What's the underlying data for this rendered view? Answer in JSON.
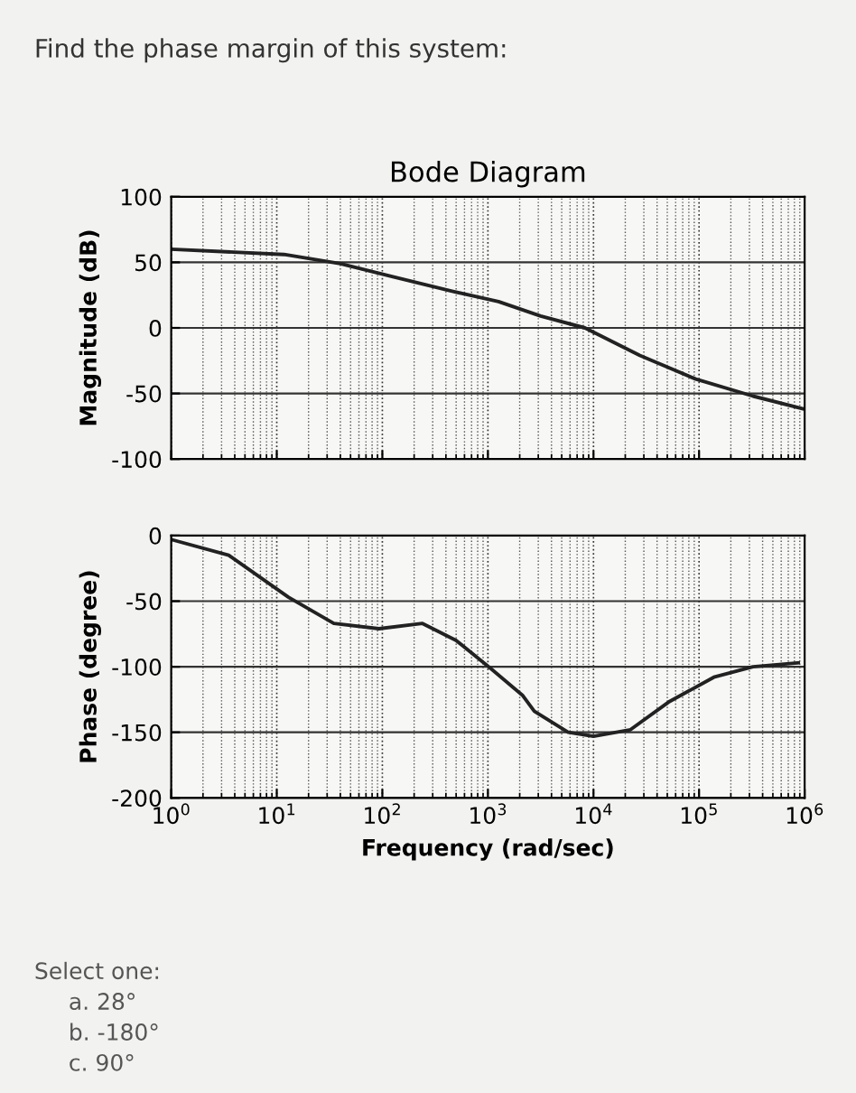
{
  "chart_data": [
    {
      "type": "line",
      "title": "Bode Diagram",
      "ylabel": "Magnitude (dB)",
      "annotations": [
        "Find the phase margin of this system:"
      ],
      "series": [
        {
          "color": "#222222",
          "x": [
            1,
            11.7,
            40,
            126,
            457,
            1260,
            3160,
            8300,
            27500,
            93000,
            324000,
            1000000
          ],
          "values": [
            60,
            56,
            49,
            39,
            28,
            20,
            9,
            0,
            -21,
            -39,
            -52,
            -62
          ]
        }
      ],
      "log": "x",
      "xlim": [
        1,
        1000000
      ],
      "xticks": [
        {
          "value": 1,
          "label": null
        },
        {
          "value": 10,
          "label": null
        },
        {
          "value": 100,
          "label": null
        },
        {
          "value": 1000,
          "label": null
        },
        {
          "value": 10000,
          "label": null
        },
        {
          "value": 100000,
          "label": null
        },
        {
          "value": 1000000,
          "label": null
        }
      ],
      "ylim": [
        -100,
        100
      ],
      "yticks": [
        {
          "value": -100,
          "label": "-100"
        },
        {
          "value": -50,
          "label": "-50"
        },
        0,
        50,
        100
      ],
      "grid": true,
      "tick_labels": "y",
      "line_style": "solid"
    },
    {
      "type": "line",
      "xlabel": "Frequency (rad/sec)",
      "ylabel": "Phase (degree)",
      "annotations": [
        "Select one:",
        "a. 28°",
        "b. -180°",
        "c. 90°"
      ],
      "series": [
        {
          "color": "#222222",
          "x": [
            1,
            3.5,
            12.9,
            34.7,
            93,
            240,
            500,
            1050,
            2140,
            2750,
            5750,
            10000,
            22400,
            51300,
            138000,
            324000,
            871000
          ],
          "values": [
            -3,
            -15,
            -47,
            -67,
            -71,
            -67,
            -80,
            -101,
            -122,
            -134,
            -150,
            -153,
            -148,
            -127,
            -108,
            -100,
            -97
          ]
        }
      ],
      "log": "x",
      "xlim": [
        1,
        1000000
      ],
      "xticks": [
        {
          "value": 1,
          "label": "10$^{0}$"
        },
        {
          "value": 10,
          "label": "10$^{1}$"
        },
        {
          "value": 100,
          "label": "10$^{2}$"
        },
        {
          "value": 1000,
          "label": "10$^{3}$"
        },
        {
          "value": 10000,
          "label": "10$^{4}$"
        },
        {
          "value": 100000,
          "label": "10$^{5}$"
        },
        {
          "value": 1000000,
          "label": "10$^{6}$"
        }
      ],
      "ylim": [
        -200,
        0
      ],
      "yticks": [
        {
          "value": -200,
          "label": "-200"
        },
        {
          "value": -150,
          "label": "-150"
        },
        {
          "value": -100,
          "label": "-100"
        },
        {
          "value": -50,
          "label": "-50"
        },
        0
      ],
      "grid": true,
      "line_style": "solid"
    }
  ]
}
